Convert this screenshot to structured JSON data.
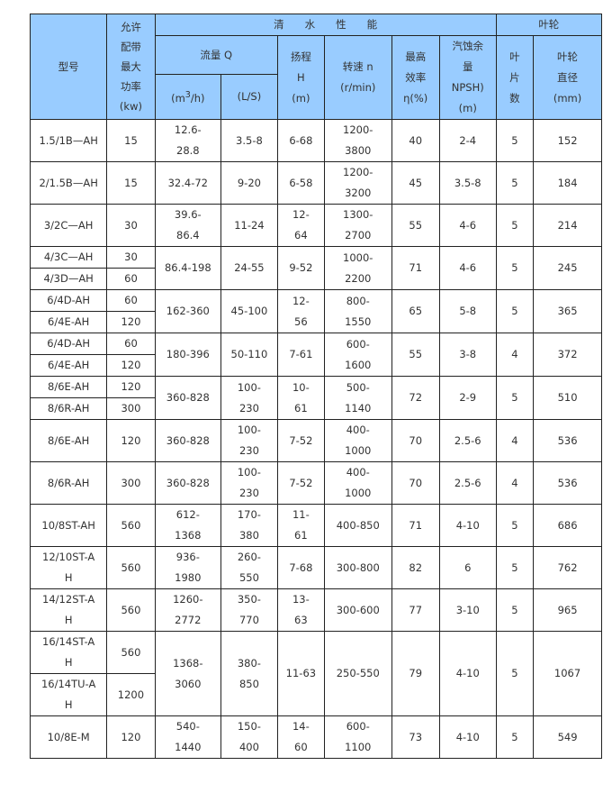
{
  "header": {
    "model": "型号",
    "power": [
      "允许",
      "配带",
      "最大",
      "功率",
      "(kw)"
    ],
    "clean_water": "清　　水　　性　　能",
    "impeller": "叶轮",
    "flow": "流量 Q",
    "flow_m3h_pre": "(m",
    "flow_m3h_sup": "3",
    "flow_m3h_post": "/h)",
    "flow_ls": "(L/S)",
    "head": [
      "扬程",
      "H",
      "(m)"
    ],
    "speed": [
      "转速 n",
      "(r/min)"
    ],
    "efficiency": [
      "最高",
      "效率",
      "η(%)"
    ],
    "npsh": [
      "汽蚀余",
      "量",
      "NPSH)",
      "(m)"
    ],
    "blades": [
      "叶",
      "片",
      "数"
    ],
    "diameter": [
      "叶轮",
      "直径",
      "(mm)"
    ]
  },
  "rows": [
    {
      "models": [
        {
          "name": "1.5/1B—AH",
          "power": "15"
        }
      ],
      "q_m3h": "12.6-28.8",
      "q_ls": "3.5-8",
      "head": "6-68",
      "speed": "1200-3800",
      "eff": "40",
      "npsh": "2-4",
      "blades": "5",
      "dia": "152"
    },
    {
      "models": [
        {
          "name": "2/1.5B—AH",
          "power": "15"
        }
      ],
      "q_m3h": "32.4-72",
      "q_ls": "9-20",
      "head": "6-58",
      "speed": "1200-3200",
      "eff": "45",
      "npsh": "3.5-8",
      "blades": "5",
      "dia": "184"
    },
    {
      "models": [
        {
          "name": "3/2C—AH",
          "power": "30"
        }
      ],
      "q_m3h": "39.6-86.4",
      "q_ls": "11-24",
      "head": "12-64",
      "speed": "1300-2700",
      "eff": "55",
      "npsh": "4-6",
      "blades": "5",
      "dia": "214"
    },
    {
      "models": [
        {
          "name": "4/3C—AH",
          "power": "30"
        },
        {
          "name": "4/3D—AH",
          "power": "60"
        }
      ],
      "q_m3h": "86.4-198",
      "q_ls": "24-55",
      "head": "9-52",
      "speed": "1000-2200",
      "eff": "71",
      "npsh": "4-6",
      "blades": "5",
      "dia": "245"
    },
    {
      "models": [
        {
          "name": "6/4D-AH",
          "power": "60"
        },
        {
          "name": "6/4E-AH",
          "power": "120"
        }
      ],
      "q_m3h": "162-360",
      "q_ls": "45-100",
      "head": "12-56",
      "speed": "800-1550",
      "eff": "65",
      "npsh": "5-8",
      "blades": "5",
      "dia": "365"
    },
    {
      "models": [
        {
          "name": "6/4D-AH",
          "power": "60"
        },
        {
          "name": "6/4E-AH",
          "power": "120"
        }
      ],
      "q_m3h": "180-396",
      "q_ls": "50-110",
      "head": "7-61",
      "speed": "600-1600",
      "eff": "55",
      "npsh": "3-8",
      "blades": "4",
      "dia": "372"
    },
    {
      "models": [
        {
          "name": "8/6E-AH",
          "power": "120"
        },
        {
          "name": "8/6R-AH",
          "power": "300"
        }
      ],
      "q_m3h": "360-828",
      "q_ls": "100-230",
      "head": "10-61",
      "speed": "500-1140",
      "eff": "72",
      "npsh": "2-9",
      "blades": "5",
      "dia": "510"
    },
    {
      "models": [
        {
          "name": "8/6E-AH",
          "power": "120"
        }
      ],
      "q_m3h": "360-828",
      "q_ls": "100-230",
      "head": "7-52",
      "speed": "400-1000",
      "eff": "70",
      "npsh": "2.5-6",
      "blades": "4",
      "dia": "536"
    },
    {
      "models": [
        {
          "name": "8/6R-AH",
          "power": "300"
        }
      ],
      "q_m3h": "360-828",
      "q_ls": "100-230",
      "head": "7-52",
      "speed": "400-1000",
      "eff": "70",
      "npsh": "2.5-6",
      "blades": "4",
      "dia": "536"
    },
    {
      "models": [
        {
          "name": "10/8ST-AH",
          "power": "560"
        }
      ],
      "q_m3h": "612-1368",
      "q_ls": "170-380",
      "head": "11-61",
      "speed": "400-850",
      "eff": "71",
      "npsh": "4-10",
      "blades": "5",
      "dia": "686"
    },
    {
      "models": [
        {
          "name": "12/10ST-AH",
          "power": "560"
        }
      ],
      "q_m3h": "936-1980",
      "q_ls": "260-550",
      "head": "7-68",
      "speed": "300-800",
      "eff": "82",
      "npsh": "6",
      "blades": "5",
      "dia": "762"
    },
    {
      "models": [
        {
          "name": "14/12ST-AH",
          "power": "560"
        }
      ],
      "q_m3h": "1260-2772",
      "q_ls": "350-770",
      "head": "13-63",
      "speed": "300-600",
      "eff": "77",
      "npsh": "3-10",
      "blades": "5",
      "dia": "965"
    },
    {
      "models": [
        {
          "name": "16/14ST-AH",
          "power": "560"
        },
        {
          "name": "16/14TU-AH",
          "power": "1200"
        }
      ],
      "q_m3h": "1368-3060",
      "q_ls": "380-850",
      "head": "11-63",
      "speed": "250-550",
      "eff": "79",
      "npsh": "4-10",
      "blades": "5",
      "dia": "1067"
    },
    {
      "models": [
        {
          "name": "10/8E-M",
          "power": "120"
        }
      ],
      "q_m3h": "540-1440",
      "q_ls": "150-400",
      "head": "14-60",
      "speed": "600-1100",
      "eff": "73",
      "npsh": "4-10",
      "blades": "5",
      "dia": "549"
    }
  ]
}
